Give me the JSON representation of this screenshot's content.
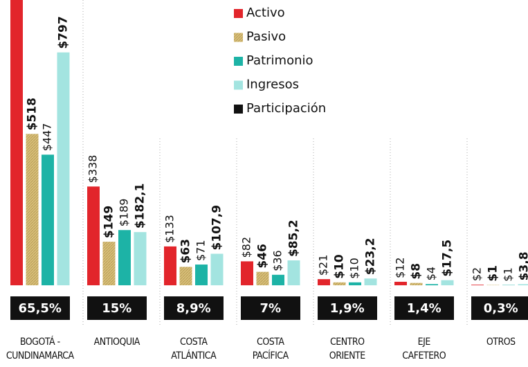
{
  "chart_data": {
    "type": "bar",
    "categories": [
      "BOGOTÁ -\nCUNDINAMARCA",
      "ANTIOQUIA",
      "COSTA\nATLÁNTICA",
      "COSTA\nPACÍFICA",
      "CENTRO\nORIENTE",
      "EJE\nCAFETERO",
      "OTROS"
    ],
    "series": [
      {
        "name": "Activo",
        "color": "#e2252b",
        "values": [
          980,
          338,
          133,
          82,
          21,
          12,
          2
        ],
        "value_labels": [
          null,
          "$338",
          "$133",
          "$82",
          "$21",
          "$12",
          "$2"
        ]
      },
      {
        "name": "Pasivo",
        "color": "#d8c07a",
        "values": [
          518,
          149,
          63,
          46,
          10,
          8,
          1
        ],
        "value_labels": [
          "$518",
          "$149",
          "$63",
          "$46",
          "$10",
          "$8",
          "$1"
        ]
      },
      {
        "name": "Patrimonio",
        "color": "#1db3a6",
        "values": [
          447,
          189,
          71,
          36,
          10,
          4,
          1
        ],
        "value_labels": [
          "$447",
          "$189",
          "$71",
          "$36",
          "$10",
          "$4",
          "$1"
        ]
      },
      {
        "name": "Ingresos",
        "color": "#a3e4e0",
        "values": [
          797,
          182.1,
          107.9,
          85.2,
          23.2,
          17.5,
          3.8
        ],
        "value_labels": [
          "$797",
          "$182,1",
          "$107,9",
          "$85,2",
          "$23,2",
          "$17,5",
          "$3,8"
        ]
      }
    ],
    "participation": {
      "name": "Participación",
      "color": "#111111",
      "values": [
        65.5,
        15,
        8.9,
        7,
        1.9,
        1.4,
        0.3
      ],
      "value_labels": [
        "65,5%",
        "15%",
        "8,9%",
        "7%",
        "1,9%",
        "1,4%",
        "0,3%"
      ]
    },
    "ylim": [
      0,
      1000
    ]
  }
}
